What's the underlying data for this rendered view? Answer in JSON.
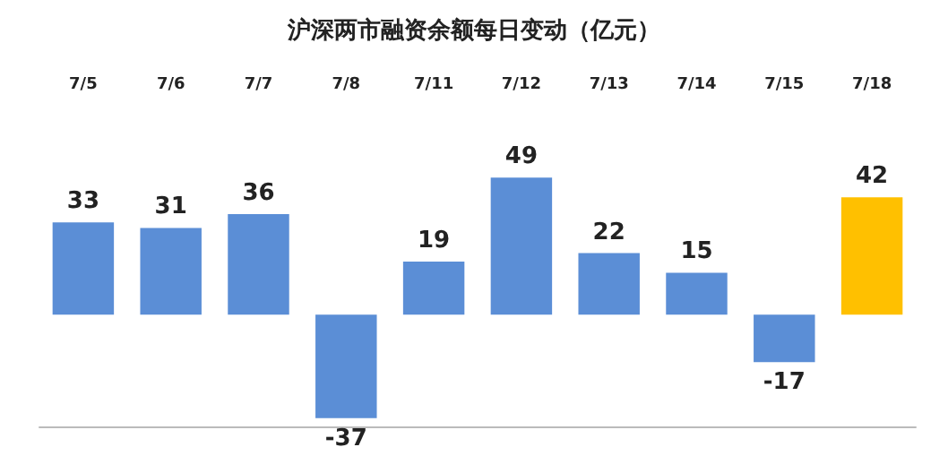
{
  "chart_data": {
    "type": "bar",
    "title": "沪深两市融资余额每日变动（亿元）",
    "categories": [
      "7/5",
      "7/6",
      "7/7",
      "7/8",
      "7/11",
      "7/12",
      "7/13",
      "7/14",
      "7/15",
      "7/18"
    ],
    "values": [
      33,
      31,
      36,
      -37,
      19,
      49,
      22,
      15,
      -17,
      42
    ],
    "colors": [
      "#5b8ed6",
      "#5b8ed6",
      "#5b8ed6",
      "#5b8ed6",
      "#5b8ed6",
      "#5b8ed6",
      "#5b8ed6",
      "#5b8ed6",
      "#5b8ed6",
      "#ffc000"
    ],
    "data_labels": true
  }
}
